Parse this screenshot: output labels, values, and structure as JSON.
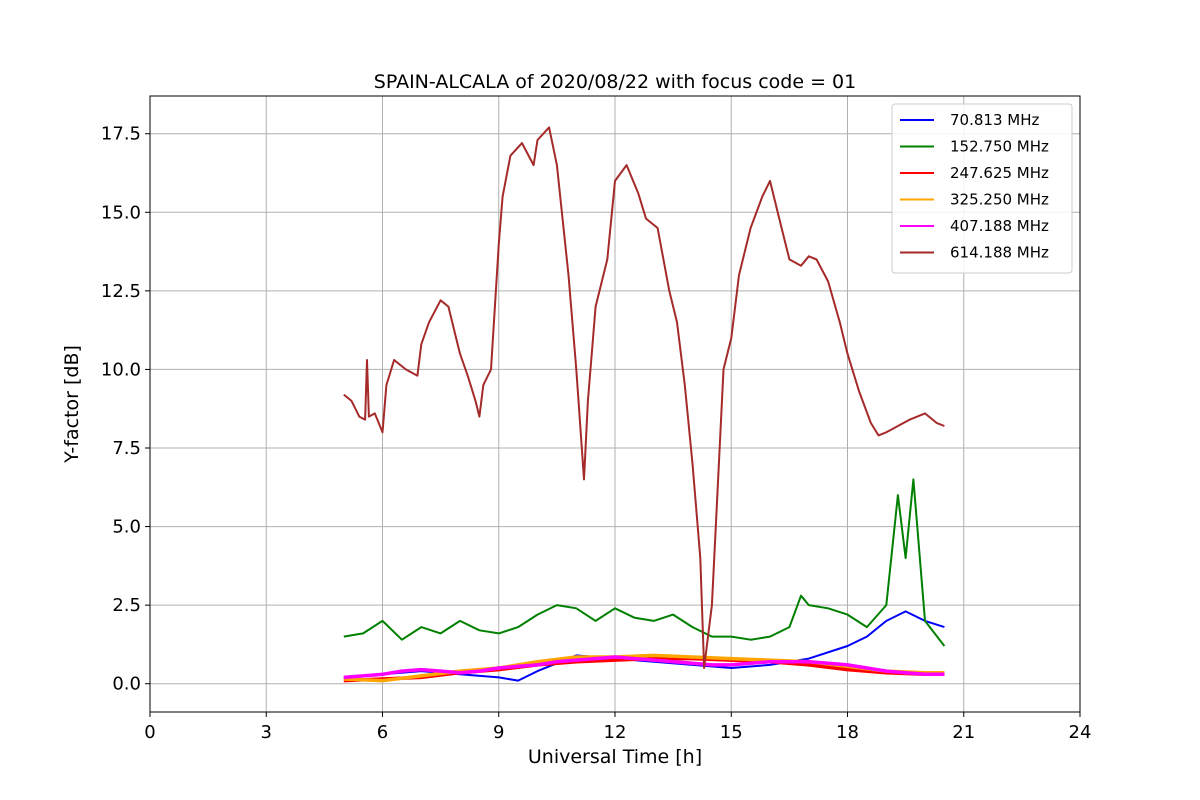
{
  "chart_data": {
    "type": "line",
    "title": "SPAIN-ALCALA of 2020/08/22 with focus code = 01",
    "xlabel": "Universal Time [h]",
    "ylabel": "Y-factor [dB]",
    "xlim": [
      0,
      24
    ],
    "ylim": [
      -0.9,
      18.7
    ],
    "xticks": [
      0,
      3,
      6,
      9,
      12,
      15,
      18,
      21,
      24
    ],
    "xtick_labels": [
      "0",
      "3",
      "6",
      "9",
      "12",
      "15",
      "18",
      "21",
      "24"
    ],
    "yticks": [
      0.0,
      2.5,
      5.0,
      7.5,
      10.0,
      12.5,
      15.0,
      17.5
    ],
    "ytick_labels": [
      "0.0",
      "2.5",
      "5.0",
      "7.5",
      "10.0",
      "12.5",
      "15.0",
      "17.5"
    ],
    "grid": true,
    "legend_position": "top-right",
    "series": [
      {
        "name": " 70.813 MHz",
        "color": "#0000ff",
        "x": [
          5.0,
          6.0,
          7.0,
          8.0,
          9.0,
          9.5,
          10.0,
          11.0,
          12.0,
          13.0,
          14.0,
          15.0,
          16.0,
          17.0,
          18.0,
          18.5,
          19.0,
          19.5,
          20.0,
          20.5
        ],
        "y": [
          0.2,
          0.3,
          0.4,
          0.3,
          0.2,
          0.1,
          0.4,
          0.9,
          0.8,
          0.7,
          0.6,
          0.5,
          0.6,
          0.8,
          1.2,
          1.5,
          2.0,
          2.3,
          2.0,
          1.8
        ]
      },
      {
        "name": "152.750 MHz",
        "color": "#008000",
        "x": [
          5.0,
          5.5,
          6.0,
          6.5,
          7.0,
          7.5,
          8.0,
          8.5,
          9.0,
          9.5,
          10.0,
          10.5,
          11.0,
          11.5,
          12.0,
          12.5,
          13.0,
          13.5,
          14.0,
          14.5,
          15.0,
          15.5,
          16.0,
          16.5,
          16.8,
          17.0,
          17.5,
          18.0,
          18.5,
          19.0,
          19.3,
          19.5,
          19.7,
          20.0,
          20.5
        ],
        "y": [
          1.5,
          1.6,
          2.0,
          1.4,
          1.8,
          1.6,
          2.0,
          1.7,
          1.6,
          1.8,
          2.2,
          2.5,
          2.4,
          2.0,
          2.4,
          2.1,
          2.0,
          2.2,
          1.8,
          1.5,
          1.5,
          1.4,
          1.5,
          1.8,
          2.8,
          2.5,
          2.4,
          2.2,
          1.8,
          2.5,
          6.0,
          4.0,
          6.5,
          2.0,
          1.2
        ]
      },
      {
        "name": "247.625 MHz",
        "color": "#ff0000",
        "x": [
          5.0,
          6.0,
          7.0,
          8.0,
          9.0,
          10.0,
          11.0,
          12.0,
          13.0,
          14.0,
          15.0,
          16.0,
          17.0,
          18.0,
          19.0,
          20.0,
          20.5
        ],
        "y": [
          0.1,
          0.15,
          0.2,
          0.35,
          0.45,
          0.6,
          0.7,
          0.75,
          0.8,
          0.8,
          0.75,
          0.7,
          0.6,
          0.45,
          0.35,
          0.3,
          0.3
        ]
      },
      {
        "name": "325.250 MHz",
        "color": "#ffa500",
        "x": [
          5.0,
          6.0,
          7.0,
          8.0,
          9.0,
          10.0,
          11.0,
          12.0,
          13.0,
          14.0,
          15.0,
          16.0,
          17.0,
          18.0,
          19.0,
          20.0,
          20.5
        ],
        "y": [
          0.15,
          0.1,
          0.25,
          0.4,
          0.5,
          0.7,
          0.85,
          0.85,
          0.9,
          0.85,
          0.8,
          0.75,
          0.7,
          0.55,
          0.4,
          0.35,
          0.35
        ]
      },
      {
        "name": "407.188 MHz",
        "color": "#ff00ff",
        "x": [
          5.0,
          5.5,
          6.0,
          6.5,
          7.0,
          7.5,
          8.0,
          8.5,
          9.0,
          9.5,
          10.0,
          10.5,
          11.0,
          11.5,
          12.0,
          12.5,
          13.0,
          13.5,
          14.0,
          14.5,
          15.0,
          15.5,
          16.0,
          16.5,
          17.0,
          17.5,
          18.0,
          18.5,
          19.0,
          19.5,
          20.0,
          20.5
        ],
        "y": [
          0.2,
          0.25,
          0.3,
          0.4,
          0.45,
          0.4,
          0.35,
          0.4,
          0.5,
          0.55,
          0.6,
          0.7,
          0.75,
          0.8,
          0.85,
          0.8,
          0.75,
          0.7,
          0.65,
          0.6,
          0.6,
          0.65,
          0.7,
          0.7,
          0.7,
          0.65,
          0.6,
          0.5,
          0.4,
          0.35,
          0.3,
          0.3
        ]
      },
      {
        "name": "614.188 MHz",
        "color": "#a52a2a",
        "x": [
          5.0,
          5.2,
          5.4,
          5.55,
          5.6,
          5.65,
          5.8,
          6.0,
          6.1,
          6.3,
          6.6,
          6.9,
          7.0,
          7.2,
          7.5,
          7.7,
          7.9,
          8.0,
          8.2,
          8.4,
          8.5,
          8.6,
          8.8,
          9.0,
          9.1,
          9.3,
          9.6,
          9.9,
          10.0,
          10.3,
          10.5,
          10.8,
          11.0,
          11.2,
          11.3,
          11.5,
          11.8,
          12.0,
          12.3,
          12.6,
          12.8,
          13.1,
          13.4,
          13.6,
          13.8,
          14.0,
          14.2,
          14.3,
          14.5,
          14.6,
          14.8,
          15.0,
          15.2,
          15.5,
          15.8,
          16.0,
          16.2,
          16.5,
          16.8,
          17.0,
          17.2,
          17.5,
          17.8,
          18.0,
          18.3,
          18.6,
          18.8,
          19.0,
          19.3,
          19.6,
          19.8,
          20.0,
          20.3,
          20.5
        ],
        "y": [
          9.2,
          9.0,
          8.5,
          8.4,
          10.3,
          8.5,
          8.6,
          8.0,
          9.5,
          10.3,
          10.0,
          9.8,
          10.8,
          11.5,
          12.2,
          12.0,
          11.0,
          10.5,
          9.8,
          9.0,
          8.5,
          9.5,
          10.0,
          14.0,
          15.5,
          16.8,
          17.2,
          16.5,
          17.3,
          17.7,
          16.5,
          13.0,
          10.0,
          6.5,
          9.0,
          12.0,
          13.5,
          16.0,
          16.5,
          15.6,
          14.8,
          14.5,
          12.5,
          11.5,
          9.5,
          7.0,
          4.0,
          0.5,
          2.5,
          5.0,
          10.0,
          11.0,
          13.0,
          14.5,
          15.5,
          16.0,
          15.0,
          13.5,
          13.3,
          13.6,
          13.5,
          12.8,
          11.5,
          10.5,
          9.3,
          8.3,
          7.9,
          8.0,
          8.2,
          8.4,
          8.5,
          8.6,
          8.3,
          8.2
        ]
      }
    ]
  }
}
